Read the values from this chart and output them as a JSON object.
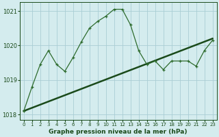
{
  "title": "Graphe pression niveau de la mer (hPa)",
  "bg_color": "#d4ecee",
  "grid_color": "#aacdd4",
  "line_color_jagged": "#2d6b2d",
  "line_color_trend": "#1a4a1a",
  "xlim": [
    -0.5,
    23.5
  ],
  "ylim": [
    1017.85,
    1021.25
  ],
  "yticks": [
    1018,
    1019,
    1020,
    1021
  ],
  "xticks": [
    0,
    1,
    2,
    3,
    4,
    5,
    6,
    7,
    8,
    9,
    10,
    11,
    12,
    13,
    14,
    15,
    16,
    17,
    18,
    19,
    20,
    21,
    22,
    23
  ],
  "trend_x": [
    0,
    23
  ],
  "trend_y": [
    1018.1,
    1020.2
  ],
  "jagged_x": [
    0,
    1,
    2,
    3,
    4,
    5,
    6,
    7,
    8,
    9,
    10,
    11,
    12,
    13,
    14,
    15,
    16,
    17,
    18,
    19,
    20,
    21,
    22,
    23
  ],
  "jagged_y": [
    1018.1,
    1018.8,
    1019.45,
    1019.85,
    1019.45,
    1019.25,
    1019.65,
    1020.1,
    1020.5,
    1020.7,
    1020.85,
    1021.05,
    1021.05,
    1020.6,
    1019.85,
    1019.45,
    1019.55,
    1019.3,
    1019.55,
    1019.55,
    1019.55,
    1019.4,
    1019.85,
    1020.15
  ]
}
